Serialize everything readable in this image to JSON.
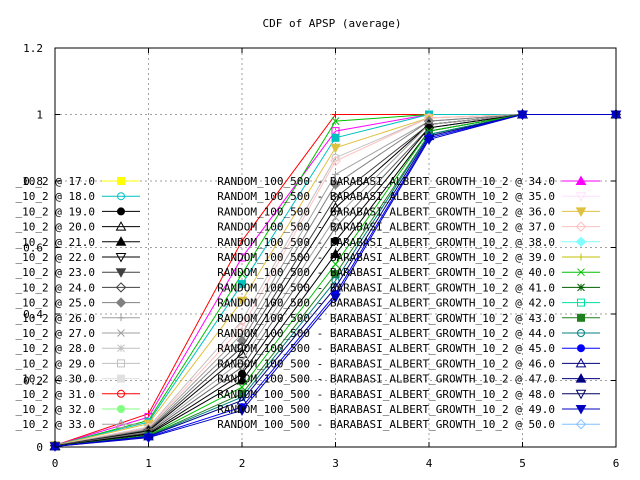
{
  "chart_data": {
    "type": "line",
    "title": "CDF of APSP (average)",
    "xlabel": "",
    "ylabel": "",
    "xlim": [
      0,
      6
    ],
    "ylim": [
      0,
      1.2
    ],
    "x": [
      0,
      1,
      2,
      3,
      4,
      5,
      6
    ],
    "xticks": [
      "0",
      "1",
      "2",
      "3",
      "4",
      "5",
      "6"
    ],
    "yticks": [
      "0",
      "0.2",
      "0.4",
      "0.6",
      "0.8",
      "1",
      "1.2"
    ],
    "grid": true,
    "legend_position": "center",
    "legend_left": [
      {
        "label": "_10_2 @ 17.0",
        "color": "#ffff00",
        "marker": "square-filled"
      },
      {
        "label": "_10_2 @ 18.0",
        "color": "#00c0c0",
        "marker": "circle-open"
      },
      {
        "label": "_10_2 @ 19.0",
        "color": "#000000",
        "marker": "circle-filled"
      },
      {
        "label": "_10_2 @ 20.0",
        "color": "#000000",
        "marker": "triangle-open"
      },
      {
        "label": "_10_2 @ 21.0",
        "color": "#000000",
        "marker": "triangle-filled"
      },
      {
        "label": "_10_2 @ 22.0",
        "color": "#000000",
        "marker": "tri-down-open"
      },
      {
        "label": "_10_2 @ 23.0",
        "color": "#404040",
        "marker": "tri-down-filled"
      },
      {
        "label": "_10_2 @ 24.0",
        "color": "#404040",
        "marker": "diamond-open"
      },
      {
        "label": "_10_2 @ 25.0",
        "color": "#808080",
        "marker": "diamond-filled"
      },
      {
        "label": "_10_2 @ 26.0",
        "color": "#a0a0a0",
        "marker": "plus"
      },
      {
        "label": "_10_2 @ 27.0",
        "color": "#a0a0a0",
        "marker": "cross"
      },
      {
        "label": "_10_2 @ 28.0",
        "color": "#c0c0c0",
        "marker": "star"
      },
      {
        "label": "_10_2 @ 29.0",
        "color": "#c0c0c0",
        "marker": "square-open"
      },
      {
        "label": "_10_2 @ 30.0",
        "color": "#e0e0e0",
        "marker": "square-filled"
      },
      {
        "label": "_10_2 @ 31.0",
        "color": "#ff0000",
        "marker": "circle-open"
      },
      {
        "label": "_10_2 @ 32.0",
        "color": "#80ff80",
        "marker": "circle-filled"
      },
      {
        "label": "_10_2 @ 33.0",
        "color": "#a0a0a0",
        "marker": "triangle-open"
      }
    ],
    "legend_right": [
      {
        "label": "RANDOM_100_500 - BARABASI_ALBERT_GROWTH_10_2 @ 34.0",
        "color": "#ff00ff",
        "marker": "triangle-filled"
      },
      {
        "label": "RANDOM_100_500 - BARABASI_ALBERT_GROWTH_10_2 @ 35.0",
        "color": "#ffe0ff",
        "marker": "tri-down-open"
      },
      {
        "label": "RANDOM_100_500 - BARABASI_ALBERT_GROWTH_10_2 @ 36.0",
        "color": "#e0c040",
        "marker": "tri-down-filled"
      },
      {
        "label": "RANDOM_100_500 - BARABASI_ALBERT_GROWTH_10_2 @ 37.0",
        "color": "#ffc0c0",
        "marker": "diamond-open"
      },
      {
        "label": "RANDOM_100_500 - BARABASI_ALBERT_GROWTH_10_2 @ 38.0",
        "color": "#80ffff",
        "marker": "diamond-filled"
      },
      {
        "label": "RANDOM_100_500 - BARABASI_ALBERT_GROWTH_10_2 @ 39.0",
        "color": "#c0c000",
        "marker": "plus"
      },
      {
        "label": "RANDOM_100_500 - BARABASI_ALBERT_GROWTH_10_2 @ 40.0",
        "color": "#00c000",
        "marker": "cross"
      },
      {
        "label": "RANDOM_100_500 - BARABASI_ALBERT_GROWTH_10_2 @ 41.0",
        "color": "#006000",
        "marker": "star"
      },
      {
        "label": "RANDOM_100_500 - BARABASI_ALBERT_GROWTH_10_2 @ 42.0",
        "color": "#00e0a0",
        "marker": "square-open"
      },
      {
        "label": "RANDOM_100_500 - BARABASI_ALBERT_GROWTH_10_2 @ 43.0",
        "color": "#208020",
        "marker": "square-filled"
      },
      {
        "label": "RANDOM_100_500 - BARABASI_ALBERT_GROWTH_10_2 @ 44.0",
        "color": "#008080",
        "marker": "circle-open"
      },
      {
        "label": "RANDOM_100_500 - BARABASI_ALBERT_GROWTH_10_2 @ 45.0",
        "color": "#0000ff",
        "marker": "circle-filled"
      },
      {
        "label": "RANDOM_100_500 - BARABASI_ALBERT_GROWTH_10_2 @ 46.0",
        "color": "#000080",
        "marker": "triangle-open"
      },
      {
        "label": "RANDOM_100_500 - BARABASI_ALBERT_GROWTH_10_2 @ 47.0",
        "color": "#000080",
        "marker": "triangle-filled"
      },
      {
        "label": "RANDOM_100_500 - BARABASI_ALBERT_GROWTH_10_2 @ 48.0",
        "color": "#000060",
        "marker": "tri-down-open"
      },
      {
        "label": "RANDOM_100_500 - BARABASI_ALBERT_GROWTH_10_2 @ 49.0",
        "color": "#0000c0",
        "marker": "tri-down-filled"
      },
      {
        "label": "RANDOM_100_500 - BARABASI_ALBERT_GROWTH_10_2 @ 50.0",
        "color": "#80c0ff",
        "marker": "diamond-open"
      }
    ],
    "series": [
      {
        "color": "#ff0000",
        "marker": "plus",
        "values": [
          0.005,
          0.1,
          0.62,
          1.0,
          1.0,
          1.0,
          1.0
        ]
      },
      {
        "color": "#ff00ff",
        "marker": "square-open",
        "values": [
          0.005,
          0.09,
          0.57,
          0.95,
          1.0,
          1.0,
          1.0
        ]
      },
      {
        "color": "#00c000",
        "marker": "cross",
        "values": [
          0.005,
          0.08,
          0.52,
          0.98,
          1.0,
          1.0,
          1.0
        ]
      },
      {
        "color": "#00c0c0",
        "marker": "square-filled",
        "values": [
          0.005,
          0.075,
          0.49,
          0.93,
          1.0,
          1.0,
          1.0
        ]
      },
      {
        "color": "#e0c040",
        "marker": "tri-down-filled",
        "values": [
          0.005,
          0.07,
          0.44,
          0.9,
          0.99,
          1.0,
          1.0
        ]
      },
      {
        "color": "#c0c0c0",
        "marker": "circle-open",
        "values": [
          0.004,
          0.06,
          0.38,
          0.87,
          0.99,
          1.0,
          1.0
        ]
      },
      {
        "color": "#ffc0c0",
        "marker": "diamond-open",
        "values": [
          0.004,
          0.058,
          0.36,
          0.86,
          0.99,
          1.0,
          1.0
        ]
      },
      {
        "color": "#a0a0a0",
        "marker": "plus",
        "values": [
          0.004,
          0.055,
          0.34,
          0.82,
          0.98,
          1.0,
          1.0
        ]
      },
      {
        "color": "#808080",
        "marker": "diamond-filled",
        "values": [
          0.004,
          0.052,
          0.32,
          0.79,
          0.98,
          1.0,
          1.0
        ]
      },
      {
        "color": "#404040",
        "marker": "diamond-open",
        "values": [
          0.004,
          0.05,
          0.3,
          0.75,
          0.97,
          1.0,
          1.0
        ]
      },
      {
        "color": "#000000",
        "marker": "triangle-open",
        "values": [
          0.003,
          0.048,
          0.28,
          0.72,
          0.97,
          1.0,
          1.0
        ]
      },
      {
        "color": "#a0a0a0",
        "marker": "cross",
        "values": [
          0.003,
          0.045,
          0.26,
          0.69,
          0.97,
          1.0,
          1.0
        ]
      },
      {
        "color": "#606060",
        "marker": "tri-down-open",
        "values": [
          0.003,
          0.043,
          0.24,
          0.66,
          0.96,
          1.0,
          1.0
        ]
      },
      {
        "color": "#000000",
        "marker": "circle-filled",
        "values": [
          0.003,
          0.04,
          0.22,
          0.62,
          0.96,
          1.0,
          1.0
        ]
      },
      {
        "color": "#000000",
        "marker": "triangle-filled",
        "values": [
          0.003,
          0.038,
          0.2,
          0.58,
          0.95,
          1.0,
          1.0
        ]
      },
      {
        "color": "#00c000",
        "marker": "cross",
        "values": [
          0.002,
          0.035,
          0.18,
          0.55,
          0.95,
          1.0,
          1.0
        ]
      },
      {
        "color": "#208020",
        "marker": "square-filled",
        "values": [
          0.002,
          0.034,
          0.16,
          0.52,
          0.94,
          1.0,
          1.0
        ]
      },
      {
        "color": "#008080",
        "marker": "circle-open",
        "values": [
          0.002,
          0.033,
          0.15,
          0.5,
          0.94,
          1.0,
          1.0
        ]
      },
      {
        "color": "#000080",
        "marker": "triangle-open",
        "values": [
          0.002,
          0.032,
          0.14,
          0.48,
          0.935,
          1.0,
          1.0
        ]
      },
      {
        "color": "#0000ff",
        "marker": "circle-filled",
        "values": [
          0.002,
          0.03,
          0.12,
          0.46,
          0.93,
          1.0,
          1.0
        ]
      },
      {
        "color": "#0000c0",
        "marker": "tri-down-filled",
        "values": [
          0.002,
          0.028,
          0.11,
          0.45,
          0.925,
          1.0,
          1.0
        ]
      }
    ]
  }
}
